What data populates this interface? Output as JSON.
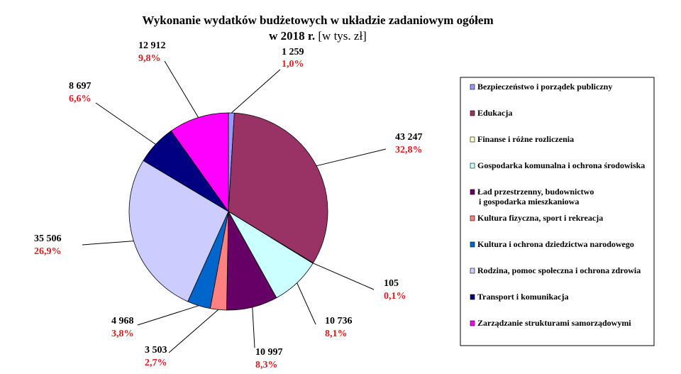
{
  "title_line1": "Wykonanie wydatków budżetowych w układzie zadaniowym ogółem",
  "title_line2_bold": "w 2018 r.",
  "title_line2_unit": "[w tys. zł]",
  "chart_data": {
    "type": "pie",
    "title": "Wykonanie wydatków budżetowych w układzie zadaniowym ogółem w 2018 r. [w tys. zł]",
    "legend_position": "right",
    "slices": [
      {
        "name": "Bezpieczeństwo i porządek publiczny",
        "value_label": "1 259",
        "value": 1259,
        "percent_label": "1,0%",
        "color": "#9999ff"
      },
      {
        "name": "Edukacja",
        "value_label": "43 247",
        "value": 43247,
        "percent_label": "32,8%",
        "color": "#993366"
      },
      {
        "name": "Finanse i różne rozliczenia",
        "value_label": "105",
        "value": 105,
        "percent_label": "0,1%",
        "color": "#ffffcc"
      },
      {
        "name": "Gospodarka komunalna i ochrona środowiska",
        "value_label": "10 736",
        "value": 10736,
        "percent_label": "8,1%",
        "color": "#ccffff"
      },
      {
        "name": "Ład przestrzenny, budownictwo i gospodarka mieszkaniowa",
        "legend_lines": [
          "Ład przestrzenny, budownictwo",
          "i gospodarka mieszkaniowa"
        ],
        "value_label": "10 997",
        "value": 10997,
        "percent_label": "8,3%",
        "color": "#660066"
      },
      {
        "name": "Kultura fizyczna, sport i rekreacja",
        "value_label": "3 503",
        "value": 3503,
        "percent_label": "2,7%",
        "color": "#ff8080"
      },
      {
        "name": "Kultura i ochrona dziedzictwa narodowego",
        "value_label": "4 968",
        "value": 4968,
        "percent_label": "3,8%",
        "color": "#0066cc"
      },
      {
        "name": "Rodzina, pomoc społeczna i ochrona zdrowia",
        "value_label": "35 506",
        "value": 35506,
        "percent_label": "26,9%",
        "color": "#ccccff"
      },
      {
        "name": "Transport i komunikacja",
        "value_label": "8 697",
        "value": 8697,
        "percent_label": "6,6%",
        "color": "#000080"
      },
      {
        "name": "Zarządzanie strukturami samorządowymi",
        "value_label": "12 912",
        "value": 12912,
        "percent_label": "9,8%",
        "color": "#ff00ff"
      }
    ]
  }
}
